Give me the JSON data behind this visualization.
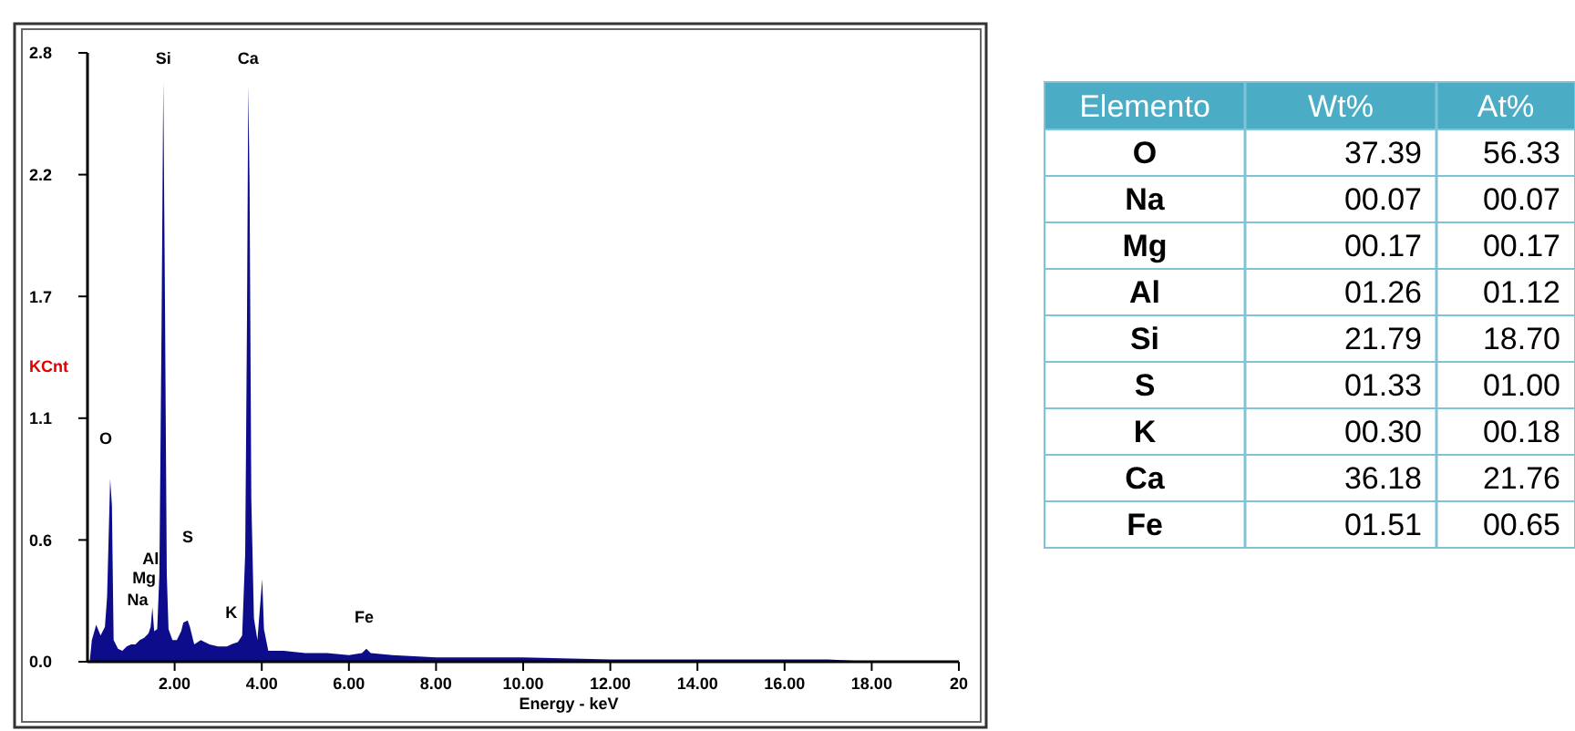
{
  "chart_data": [
    {
      "type": "area",
      "xlabel": "Energy - keV",
      "ylabel": "KCnt",
      "color": "#0d0d8c",
      "x": [
        0.05,
        0.1,
        0.2,
        0.3,
        0.4,
        0.45,
        0.52,
        0.56,
        0.6,
        0.7,
        0.8,
        0.9,
        1.0,
        1.1,
        1.2,
        1.3,
        1.4,
        1.45,
        1.49,
        1.53,
        1.6,
        1.65,
        1.7,
        1.74,
        1.78,
        1.82,
        1.86,
        1.95,
        2.05,
        2.15,
        2.2,
        2.3,
        2.35,
        2.45,
        2.6,
        2.8,
        3.0,
        3.2,
        3.3,
        3.45,
        3.55,
        3.62,
        3.66,
        3.69,
        3.72,
        3.76,
        3.82,
        3.9,
        4.01,
        4.05,
        4.15,
        4.5,
        5.0,
        5.5,
        6.0,
        6.3,
        6.4,
        6.5,
        7.0,
        8.0,
        9.0,
        10,
        12,
        14,
        16,
        17,
        18,
        20
      ],
      "values": [
        0,
        0.1,
        0.17,
        0.12,
        0.16,
        0.3,
        0.84,
        0.72,
        0.1,
        0.06,
        0.05,
        0.07,
        0.08,
        0.08,
        0.1,
        0.11,
        0.13,
        0.16,
        0.25,
        0.14,
        0.15,
        0.4,
        1.55,
        2.67,
        1.6,
        0.4,
        0.15,
        0.1,
        0.1,
        0.14,
        0.18,
        0.19,
        0.16,
        0.08,
        0.1,
        0.08,
        0.07,
        0.07,
        0.08,
        0.09,
        0.12,
        0.5,
        1.55,
        2.65,
        2.2,
        0.75,
        0.2,
        0.1,
        0.38,
        0.15,
        0.05,
        0.05,
        0.04,
        0.04,
        0.03,
        0.04,
        0.06,
        0.04,
        0.03,
        0.02,
        0.02,
        0.02,
        0.01,
        0.01,
        0.01,
        0.01,
        0.0,
        0.0
      ],
      "xlim": [
        0,
        20
      ],
      "xticks": [
        {
          "value": 2,
          "label": "2.00"
        },
        {
          "value": 4,
          "label": "4.00"
        },
        {
          "value": 6,
          "label": "6.00"
        },
        {
          "value": 8,
          "label": "8.00"
        },
        {
          "value": 10,
          "label": "10.00"
        },
        {
          "value": 12,
          "label": "12.00"
        },
        {
          "value": 14,
          "label": "14.00"
        },
        {
          "value": 16,
          "label": "16.00"
        },
        {
          "value": 18,
          "label": "18.00"
        },
        {
          "value": 20,
          "label": "20"
        }
      ],
      "ylim": [
        0,
        2.8
      ],
      "yticks": [
        {
          "value": 0,
          "label": "0.0"
        },
        {
          "value": 0.56,
          "label": "0.6"
        },
        {
          "value": 1.12,
          "label": "1.1"
        },
        {
          "value": 1.68,
          "label": "1.7"
        },
        {
          "value": 2.24,
          "label": "2.2"
        },
        {
          "value": 2.8,
          "label": "2.8"
        }
      ],
      "annotations": [
        "O",
        "Na",
        "Mg",
        "Al",
        "Si",
        "S",
        "K",
        "Ca",
        "Fe"
      ]
    },
    {
      "type": "other",
      "ylabel": "Elemento",
      "categories": [
        "O",
        "Na",
        "Mg",
        "Al",
        "Si",
        "S",
        "K",
        "Ca",
        "Fe"
      ],
      "series": [
        {
          "name": "Wt%",
          "values": [
            37.39,
            0.07,
            0.17,
            1.26,
            21.79,
            1.33,
            0.3,
            36.18,
            1.51
          ],
          "value_labels": [
            "37.39",
            "00.07",
            "00.17",
            "01.26",
            "21.79",
            "01.33",
            "00.30",
            "36.18",
            "01.51"
          ]
        },
        {
          "name": "At%",
          "values": [
            56.33,
            0.07,
            0.17,
            1.12,
            18.7,
            1.0,
            0.18,
            21.76,
            0.65
          ],
          "value_labels": [
            "56.33",
            "00.07",
            "00.17",
            "01.12",
            "18.70",
            "01.00",
            "00.18",
            "21.76",
            "00.65"
          ]
        }
      ]
    }
  ]
}
